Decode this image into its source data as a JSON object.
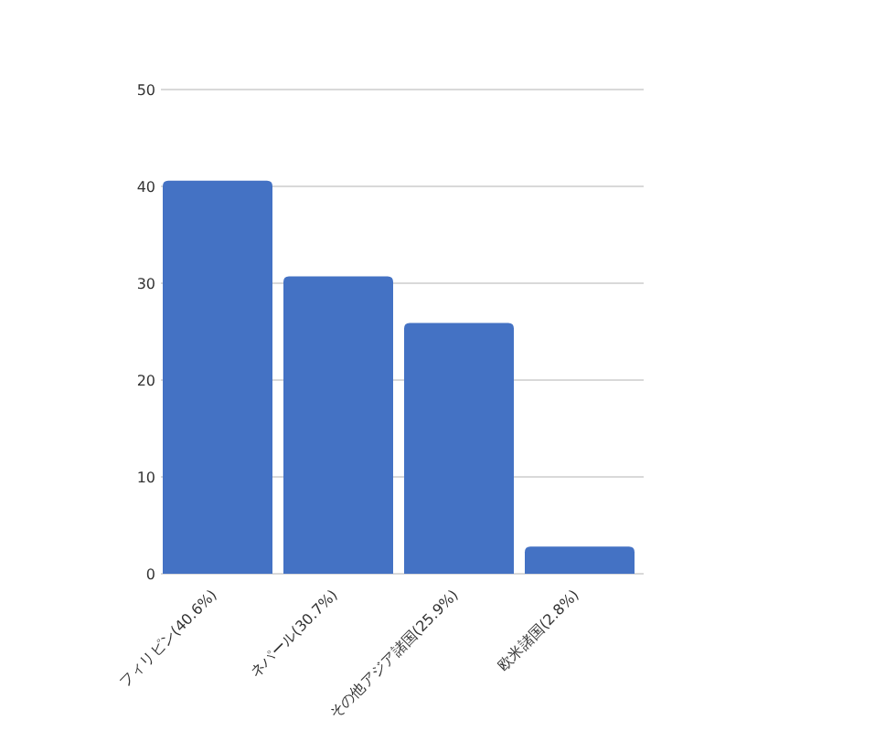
{
  "chart_data": {
    "type": "bar",
    "categories": [
      "フィリピン(40.6%)",
      "ネパール(30.7%)",
      "その他アジア諸国(25.9%)",
      "欧米諸国(2.8%)"
    ],
    "values": [
      40.6,
      30.7,
      25.9,
      2.8
    ],
    "color": "#4472c4",
    "ylim": [
      0,
      50
    ],
    "yticks": [
      0,
      10,
      20,
      30,
      40,
      50
    ],
    "grid": "y"
  }
}
